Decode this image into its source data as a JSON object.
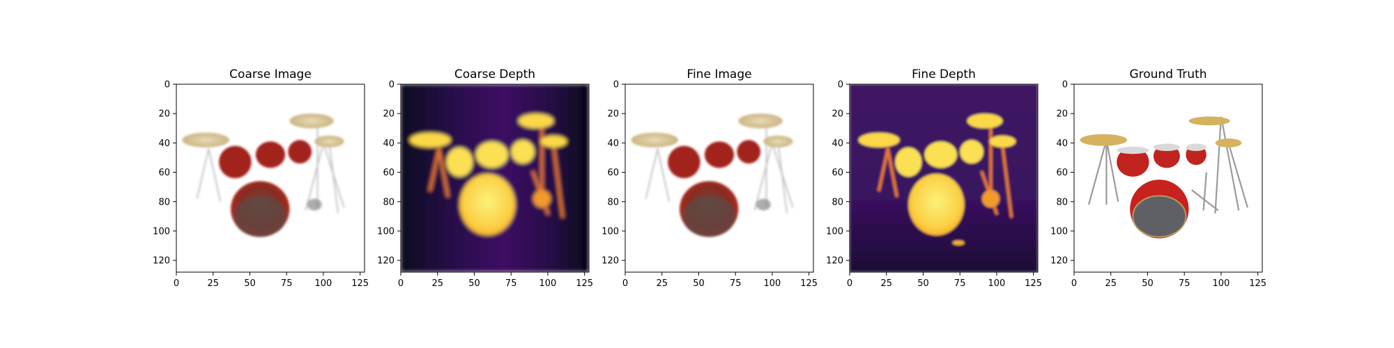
{
  "chart_data": [
    {
      "type": "image",
      "title": "Coarse Image",
      "content": "rgb-render",
      "xlim": [
        0,
        128
      ],
      "ylim": [
        128,
        0
      ],
      "xticks": [
        0,
        25,
        50,
        75,
        100,
        125
      ],
      "yticks": [
        0,
        20,
        40,
        60,
        80,
        100,
        120
      ]
    },
    {
      "type": "heatmap",
      "title": "Coarse Depth",
      "content": "depth-render",
      "colormap": "inferno",
      "xlim": [
        0,
        128
      ],
      "ylim": [
        128,
        0
      ],
      "xticks": [
        0,
        25,
        50,
        75,
        100,
        125
      ],
      "yticks": [
        0,
        20,
        40,
        60,
        80,
        100,
        120
      ]
    },
    {
      "type": "image",
      "title": "Fine Image",
      "content": "rgb-render",
      "xlim": [
        0,
        128
      ],
      "ylim": [
        128,
        0
      ],
      "xticks": [
        0,
        25,
        50,
        75,
        100,
        125
      ],
      "yticks": [
        0,
        20,
        40,
        60,
        80,
        100,
        120
      ]
    },
    {
      "type": "heatmap",
      "title": "Fine Depth",
      "content": "depth-render",
      "colormap": "inferno",
      "xlim": [
        0,
        128
      ],
      "ylim": [
        128,
        0
      ],
      "xticks": [
        0,
        25,
        50,
        75,
        100,
        125
      ],
      "yticks": [
        0,
        20,
        40,
        60,
        80,
        100,
        120
      ]
    },
    {
      "type": "image",
      "title": "Ground Truth",
      "content": "rgb-photo",
      "xlim": [
        0,
        128
      ],
      "ylim": [
        128,
        0
      ],
      "xticks": [
        0,
        25,
        50,
        75,
        100,
        125
      ],
      "yticks": [
        0,
        20,
        40,
        60,
        80,
        100,
        120
      ]
    }
  ],
  "colors": {
    "depth_background": "#1a0b3a",
    "depth_near": "#fcdc4a",
    "drum_red": "#b01a18",
    "cymbal": "#d9c499",
    "hardware": "#b8b8b8"
  }
}
